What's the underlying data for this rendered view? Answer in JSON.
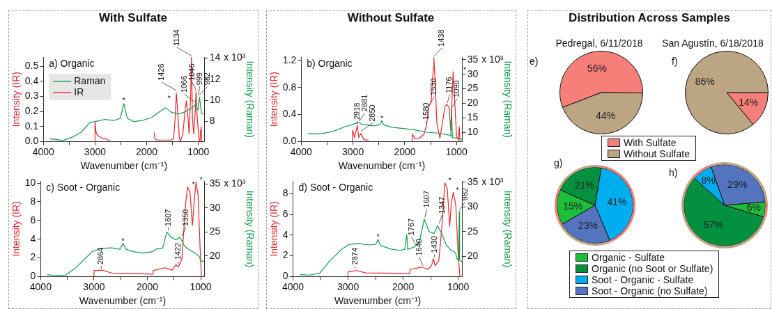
{
  "chart_data": [
    {
      "type": "line",
      "title": "With Sulfate",
      "xlabel": "Wavenumber (cm⁻¹)",
      "ylabel": "Intensity (IR)",
      "y2label": "Intensity (Raman)",
      "legend": "top left",
      "xlim": [
        4000,
        880
      ],
      "xticks": [
        4000,
        {
          "value": 3500,
          "label": null
        },
        3000,
        {
          "value": 2500,
          "label": null
        },
        2000,
        {
          "value": 1500,
          "label": null
        },
        1000
      ],
      "ylim": [
        0,
        0.56
      ],
      "yticks": [
        {
          "value": 0,
          "label": "0.0"
        },
        {
          "value": 0.1,
          "label": "0.1"
        },
        {
          "value": 0.2,
          "label": "0.2"
        },
        {
          "value": 0.3,
          "label": "0.3"
        },
        {
          "value": 0.4,
          "label": "0.4"
        },
        {
          "value": 0.5,
          "label": "0.5"
        }
      ],
      "y2lim": [
        6.1,
        14.1
      ],
      "y2ticks": [
        8,
        10,
        12,
        14
      ],
      "annotations": [
        "a) Organic",
        "x 10³",
        {
          "text": "1426",
          "x": 1426,
          "y": 0.33
        },
        {
          "text": "1134",
          "x": 1134,
          "y": 0.56
        },
        {
          "text": "1066",
          "x": 1066,
          "y": 0.25
        },
        {
          "text": "1046",
          "x": 1046,
          "y": 0.33
        },
        {
          "text": "999",
          "x": 999,
          "y": 0.3
        },
        {
          "text": "982",
          "x": 982,
          "y": 0.3
        },
        {
          "text": "*",
          "x": 2443,
          "y": 0.26
        },
        {
          "text": "*",
          "x": 1233,
          "y": 0.27
        }
      ],
      "series": [
        {
          "name": "Raman",
          "color": "#0f9d48",
          "axis": "y2",
          "x": [
            3877,
            3750,
            3627,
            3445,
            3263,
            3103,
            2990,
            2807,
            2625,
            2512,
            2443,
            2375,
            2261,
            2079,
            1897,
            1761,
            1633,
            1533,
            1397,
            1260,
            1123,
            1055,
            1010,
            978,
            942,
            897
          ],
          "values": [
            6.35,
            6.3,
            6.2,
            6.5,
            7.0,
            7.9,
            8.0,
            8.2,
            8.1,
            8.3,
            9.7,
            8.3,
            8.0,
            8.1,
            8.4,
            8.9,
            9.3,
            8.9,
            8.7,
            8.9,
            9.3,
            9.6,
            9.1,
            10.3,
            8.8,
            8.7
          ]
        },
        {
          "name": "IR",
          "color": "#e8242b",
          "x": [
            3000,
            3000,
            2980,
            2950,
            2900,
            2850,
            2800,
            2750,
            2700,
            2300,
            1850,
            1845,
            1800,
            1700,
            1600,
            1520,
            1480,
            1450,
            1426,
            1400,
            1370,
            1350,
            1300,
            1260,
            1233,
            1210,
            1180,
            1150,
            1134,
            1115,
            1090,
            1060,
            1046,
            1020,
            990,
            970,
            955,
            945,
            935
          ],
          "values": [
            0,
            0.13,
            0.06,
            0.04,
            0.03,
            0.02,
            0.02,
            0.01,
            0.01,
            null,
            0.06,
            0.02,
            0.01,
            0.01,
            0.01,
            0.01,
            0.02,
            0.15,
            0.32,
            0.2,
            0.03,
            0,
            0.05,
            0.2,
            0.27,
            0.2,
            0.05,
            0.3,
            0.56,
            0.15,
            0.05,
            0.2,
            0.33,
            0.15,
            0.02,
            0,
            0.08,
            0.1,
            0
          ]
        }
      ]
    },
    {
      "type": "line",
      "title": "Without Sulfate",
      "xlabel": "Wavenumber (cm⁻¹)",
      "ylabel": "Intensity (IR)",
      "y2label": "Intensity (Raman)",
      "xlim": [
        4000,
        888
      ],
      "xticks": [
        4000,
        {
          "value": 3500,
          "label": null
        },
        3000,
        {
          "value": 2500,
          "label": null
        },
        2000,
        {
          "value": 1500,
          "label": null
        },
        1000
      ],
      "ylim": [
        0,
        1.25
      ],
      "yticks": [
        {
          "value": 0,
          "label": "0.0"
        },
        {
          "value": 0.4,
          "label": "0.4"
        },
        {
          "value": 0.8,
          "label": "0.8"
        },
        {
          "value": 1.2,
          "label": "1.2"
        }
      ],
      "y2lim": [
        6.9,
        35.9
      ],
      "y2ticks": [
        10,
        15,
        20,
        25,
        30,
        35
      ],
      "annotations": [
        "b) Organic",
        "x 10³",
        {
          "text": "2918",
          "x": 2918,
          "y": 0.24
        },
        {
          "text": "2881",
          "x": 2881,
          "y": 0.28
        },
        {
          "text": "2850",
          "x": 2850,
          "y": 0.13
        },
        {
          "text": "*",
          "x": 2442,
          "y": 0.31
        },
        {
          "text": "1580",
          "x": 1580,
          "y": 0.24
        },
        {
          "text": "1530",
          "x": 1530,
          "y": 0.52
        },
        {
          "text": "1438",
          "x": 1438,
          "y": 1.24
        },
        {
          "text": "1176",
          "x": 1176,
          "y": 0.55
        },
        {
          "text": "1090",
          "x": 1090,
          "y": 0.49
        },
        {
          "text": "*",
          "x": 1067,
          "y": 1.03
        }
      ],
      "series": [
        {
          "color": "#0f9d48",
          "axis": "y2",
          "x": [
            3879,
            3597,
            3373,
            3149,
            2970,
            2889,
            2836,
            2612,
            2477,
            2442,
            2410,
            2253,
            2030,
            1806,
            1582,
            1358,
            1134,
            1112,
            1098,
            1080,
            955,
            890
          ],
          "values": [
            9.6,
            9.6,
            10.5,
            12.0,
            13.0,
            13.4,
            12.9,
            12.3,
            12.7,
            14.1,
            12.7,
            11.8,
            11.4,
            10.9,
            10.1,
            9.8,
            9.1,
            8.7,
            18.3,
            8.3,
            8.0,
            7.7
          ]
        },
        {
          "color": "#e8242b",
          "x": [
            3015,
            3006,
            2970,
            2916,
            2889,
            2845,
            2791,
            2701,
            2300,
            1859,
            1850,
            1806,
            1716,
            1627,
            1582,
            1537,
            1492,
            1447,
            1438,
            1416,
            1380,
            1322,
            1268,
            1224,
            1188,
            1143,
            1112,
            1067,
            1000,
            965,
            948,
            934
          ],
          "values": [
            0,
            0.17,
            0.06,
            0.24,
            0.06,
            0.12,
            0.03,
            0.02,
            null,
            0,
            0.11,
            0.04,
            0.05,
            0.11,
            0.24,
            0.52,
            0.58,
            1.1,
            1.24,
            0.92,
            0.27,
            0.05,
            0.3,
            0.52,
            0.55,
            0.5,
            0.17,
            1.03,
            0.08,
            0.02,
            0.22,
            0
          ]
        }
      ]
    },
    {
      "type": "pie",
      "title": "Distribution Across Samples",
      "subtitle": "Pedregal, 6/11/2018",
      "annotations": [
        "e)"
      ],
      "categories": [
        "With Sulfate",
        "Without Sulfate"
      ],
      "values": [
        56,
        44
      ],
      "colors": [
        "#f77f7a",
        "#bba582"
      ],
      "value_labels": [
        "56%",
        "44%"
      ],
      "legend": "bottom"
    },
    {
      "type": "pie",
      "subtitle": "San Agustín, 6/18/2018",
      "annotations": [
        "f)"
      ],
      "categories": [
        null,
        null
      ],
      "values": [
        14,
        86
      ],
      "colors": [
        "#f77f7a",
        "#bba582"
      ],
      "value_labels": [
        "14%",
        "86%"
      ]
    },
    {
      "type": "line",
      "xlabel": "Wavenumber (cm⁻¹)",
      "ylabel": "Intensity (IR)",
      "y2label": "Intensity (Raman)",
      "xlim": [
        4000,
        927
      ],
      "xticks": [
        4000,
        {
          "value": 3500,
          "label": null
        },
        3000,
        {
          "value": 2500,
          "label": null
        },
        2000,
        {
          "value": 1500,
          "label": null
        },
        1000
      ],
      "ylim": [
        0,
        10.2
      ],
      "yticks": [
        0,
        2,
        4,
        6,
        8,
        10
      ],
      "y2lim": [
        15.7,
        35.6
      ],
      "y2ticks": [
        20,
        25,
        30,
        35
      ],
      "annotations": [
        "c) Soot - Organic",
        "x 10³",
        {
          "text": "2864",
          "x": 2864,
          "y": 0.7
        },
        {
          "text": "*",
          "x": 2457,
          "y": 3.6
        },
        {
          "text": "1607",
          "x": 1607,
          "y": 4.8
        },
        {
          "text": "1422",
          "x": 1422,
          "y": 1.2
        },
        {
          "text": "1350",
          "x": 1350,
          "y": 4.2
        },
        {
          "text": "*",
          "x": 1246,
          "y": 9.6
        },
        {
          "text": "*",
          "x": 1087,
          "y": 10.1
        }
      ],
      "series": [
        {
          "color": "#0f9d48",
          "axis": "y2",
          "x": [
            3877,
            3718,
            3536,
            3354,
            3172,
            3035,
            2853,
            2671,
            2512,
            2457,
            2398,
            2261,
            2079,
            1897,
            1806,
            1715,
            1633,
            1556,
            1465,
            1387,
            1305,
            1192,
            1101,
            1032,
            987,
            930
          ],
          "values": [
            16.1,
            15.9,
            16.0,
            17.4,
            19.4,
            20.9,
            21.6,
            21.7,
            21.4,
            22.6,
            21.4,
            20.9,
            20.6,
            20.9,
            21.6,
            21.6,
            25.0,
            23.9,
            23.4,
            23.9,
            22.1,
            21.1,
            20.6,
            19.9,
            18.9,
            18.9
          ]
        },
        {
          "color": "#e8242b",
          "x": [
            3000,
            3000,
            2853,
            2671,
            1897,
            1888,
            1806,
            1670,
            1533,
            1465,
            1419,
            1351,
            1283,
            1246,
            1201,
            1155,
            1114,
            1087,
            1050,
            1010,
            987
          ],
          "values": [
            0,
            0.64,
            0.69,
            0.38,
            0.26,
            0.64,
            0.77,
            0.94,
            0.69,
            1.28,
            1.02,
            1.91,
            7.8,
            9.57,
            9.06,
            5.48,
            8.55,
            10.08,
            8.8,
            2.93,
            0
          ]
        }
      ]
    },
    {
      "type": "line",
      "xlabel": "Wavenumber (cm⁻¹)",
      "ylabel": "Intensity (IR)",
      "y2label": "Intensity (Raman)",
      "xlim": [
        4000,
        925
      ],
      "xticks": [
        4000,
        {
          "value": 3500,
          "label": null
        },
        3000,
        {
          "value": 2500,
          "label": null
        },
        2000,
        {
          "value": 1500,
          "label": null
        },
        1000
      ],
      "ylim": [
        0,
        9.2
      ],
      "yticks": [
        0,
        2,
        4,
        6,
        8
      ],
      "y2lim": [
        15.9,
        35.2
      ],
      "y2ticks": [
        20,
        25,
        30,
        35
      ],
      "annotations": [
        "d) Soot - Organic",
        "x 10³",
        {
          "text": "2874",
          "x": 2874,
          "y": 0.6
        },
        {
          "text": "*",
          "x": 2456,
          "y": 3.6
        },
        {
          "text": "1767",
          "x": 1767,
          "y": 2.9
        },
        {
          "text": "1640",
          "x": 1640,
          "y": 0.93
        },
        {
          "text": "1607",
          "x": 1607,
          "y": 5.57
        },
        {
          "text": "1430",
          "x": 1430,
          "y": 1.74
        },
        {
          "text": "1347",
          "x": 1347,
          "y": 4.99
        },
        {
          "text": "*",
          "x": 1243,
          "y": 9.05
        },
        {
          "text": "*",
          "x": 1089,
          "y": 8.12
        },
        {
          "text": "982",
          "x": 982,
          "y": 6.26
        }
      ],
      "series": [
        {
          "color": "#0f9d48",
          "axis": "y2",
          "x": [
            3876,
            3691,
            3515,
            3338,
            3118,
            2985,
            2809,
            2633,
            2500,
            2456,
            2412,
            2235,
            2059,
            1971,
            1935,
            1918,
            1794,
            1706,
            1618,
            1530,
            1442,
            1375,
            1309,
            1221,
            1132,
            1079,
            1044,
            1018,
            990,
            982,
            975,
            950,
            928
          ],
          "values": [
            16.3,
            16.2,
            16.6,
            19.0,
            21.4,
            22.4,
            22.6,
            22.3,
            22.4,
            23.4,
            22.2,
            21.5,
            21.2,
            21.4,
            24.4,
            21.4,
            21.9,
            22.9,
            27.5,
            25.0,
            24.6,
            26.2,
            24.8,
            22.4,
            21.2,
            21.0,
            20.5,
            19.4,
            19.2,
            29.0,
            19.2,
            19.0,
            18.8
          ]
        },
        {
          "color": "#e8242b",
          "x": [
            3008,
            3000,
            2853,
            2677,
            1883,
            1870,
            1750,
            1662,
            1552,
            1486,
            1450,
            1420,
            1353,
            1287,
            1243,
            1199,
            1155,
            1124,
            1089,
            1044,
            1000,
            969
          ],
          "values": [
            0,
            0.46,
            0.58,
            0.35,
            0.3,
            0.7,
            0.81,
            0.93,
            0.7,
            1.04,
            1.74,
            1.04,
            1.51,
            5.45,
            9.05,
            8.47,
            4.87,
            7.19,
            8.12,
            6.84,
            1.97,
            0
          ]
        }
      ]
    },
    {
      "type": "pie",
      "annotations": [
        "g)"
      ],
      "categories": [
        "Organic - Sulfate",
        "Organic (no Soot or Sulfate)",
        "Soot - Organic - Sulfate",
        "Soot - Organic (no Sulfate)"
      ],
      "legend": "bottom",
      "series": [
        {
          "colors": [
            "#1dbf3a",
            "#04913f",
            "#00aeef",
            "#5574c0"
          ],
          "values": [
            15,
            21,
            41,
            23
          ],
          "value_labels": [
            "15%",
            "21%",
            "41%",
            "23%"
          ]
        },
        {
          "colors": [
            "#f77f7a",
            "#bba582",
            "#f77f7a",
            "#bba582"
          ],
          "values": [
            15,
            21,
            41,
            23
          ]
        }
      ]
    },
    {
      "type": "pie",
      "annotations": [
        "h)"
      ],
      "categories": [
        null,
        null,
        null,
        null
      ],
      "series": [
        {
          "colors": [
            "#1dbf3a",
            "#04913f",
            "#00aeef",
            "#5574c0"
          ],
          "values": [
            6,
            57,
            8,
            29
          ],
          "value_labels": [
            "6%",
            "57%",
            "8%",
            "29%"
          ]
        },
        {
          "colors": [
            "#f77f7a",
            "#bba582",
            "#f77f7a",
            "#bba582"
          ],
          "values": [
            6,
            57,
            8,
            29
          ]
        }
      ]
    }
  ]
}
